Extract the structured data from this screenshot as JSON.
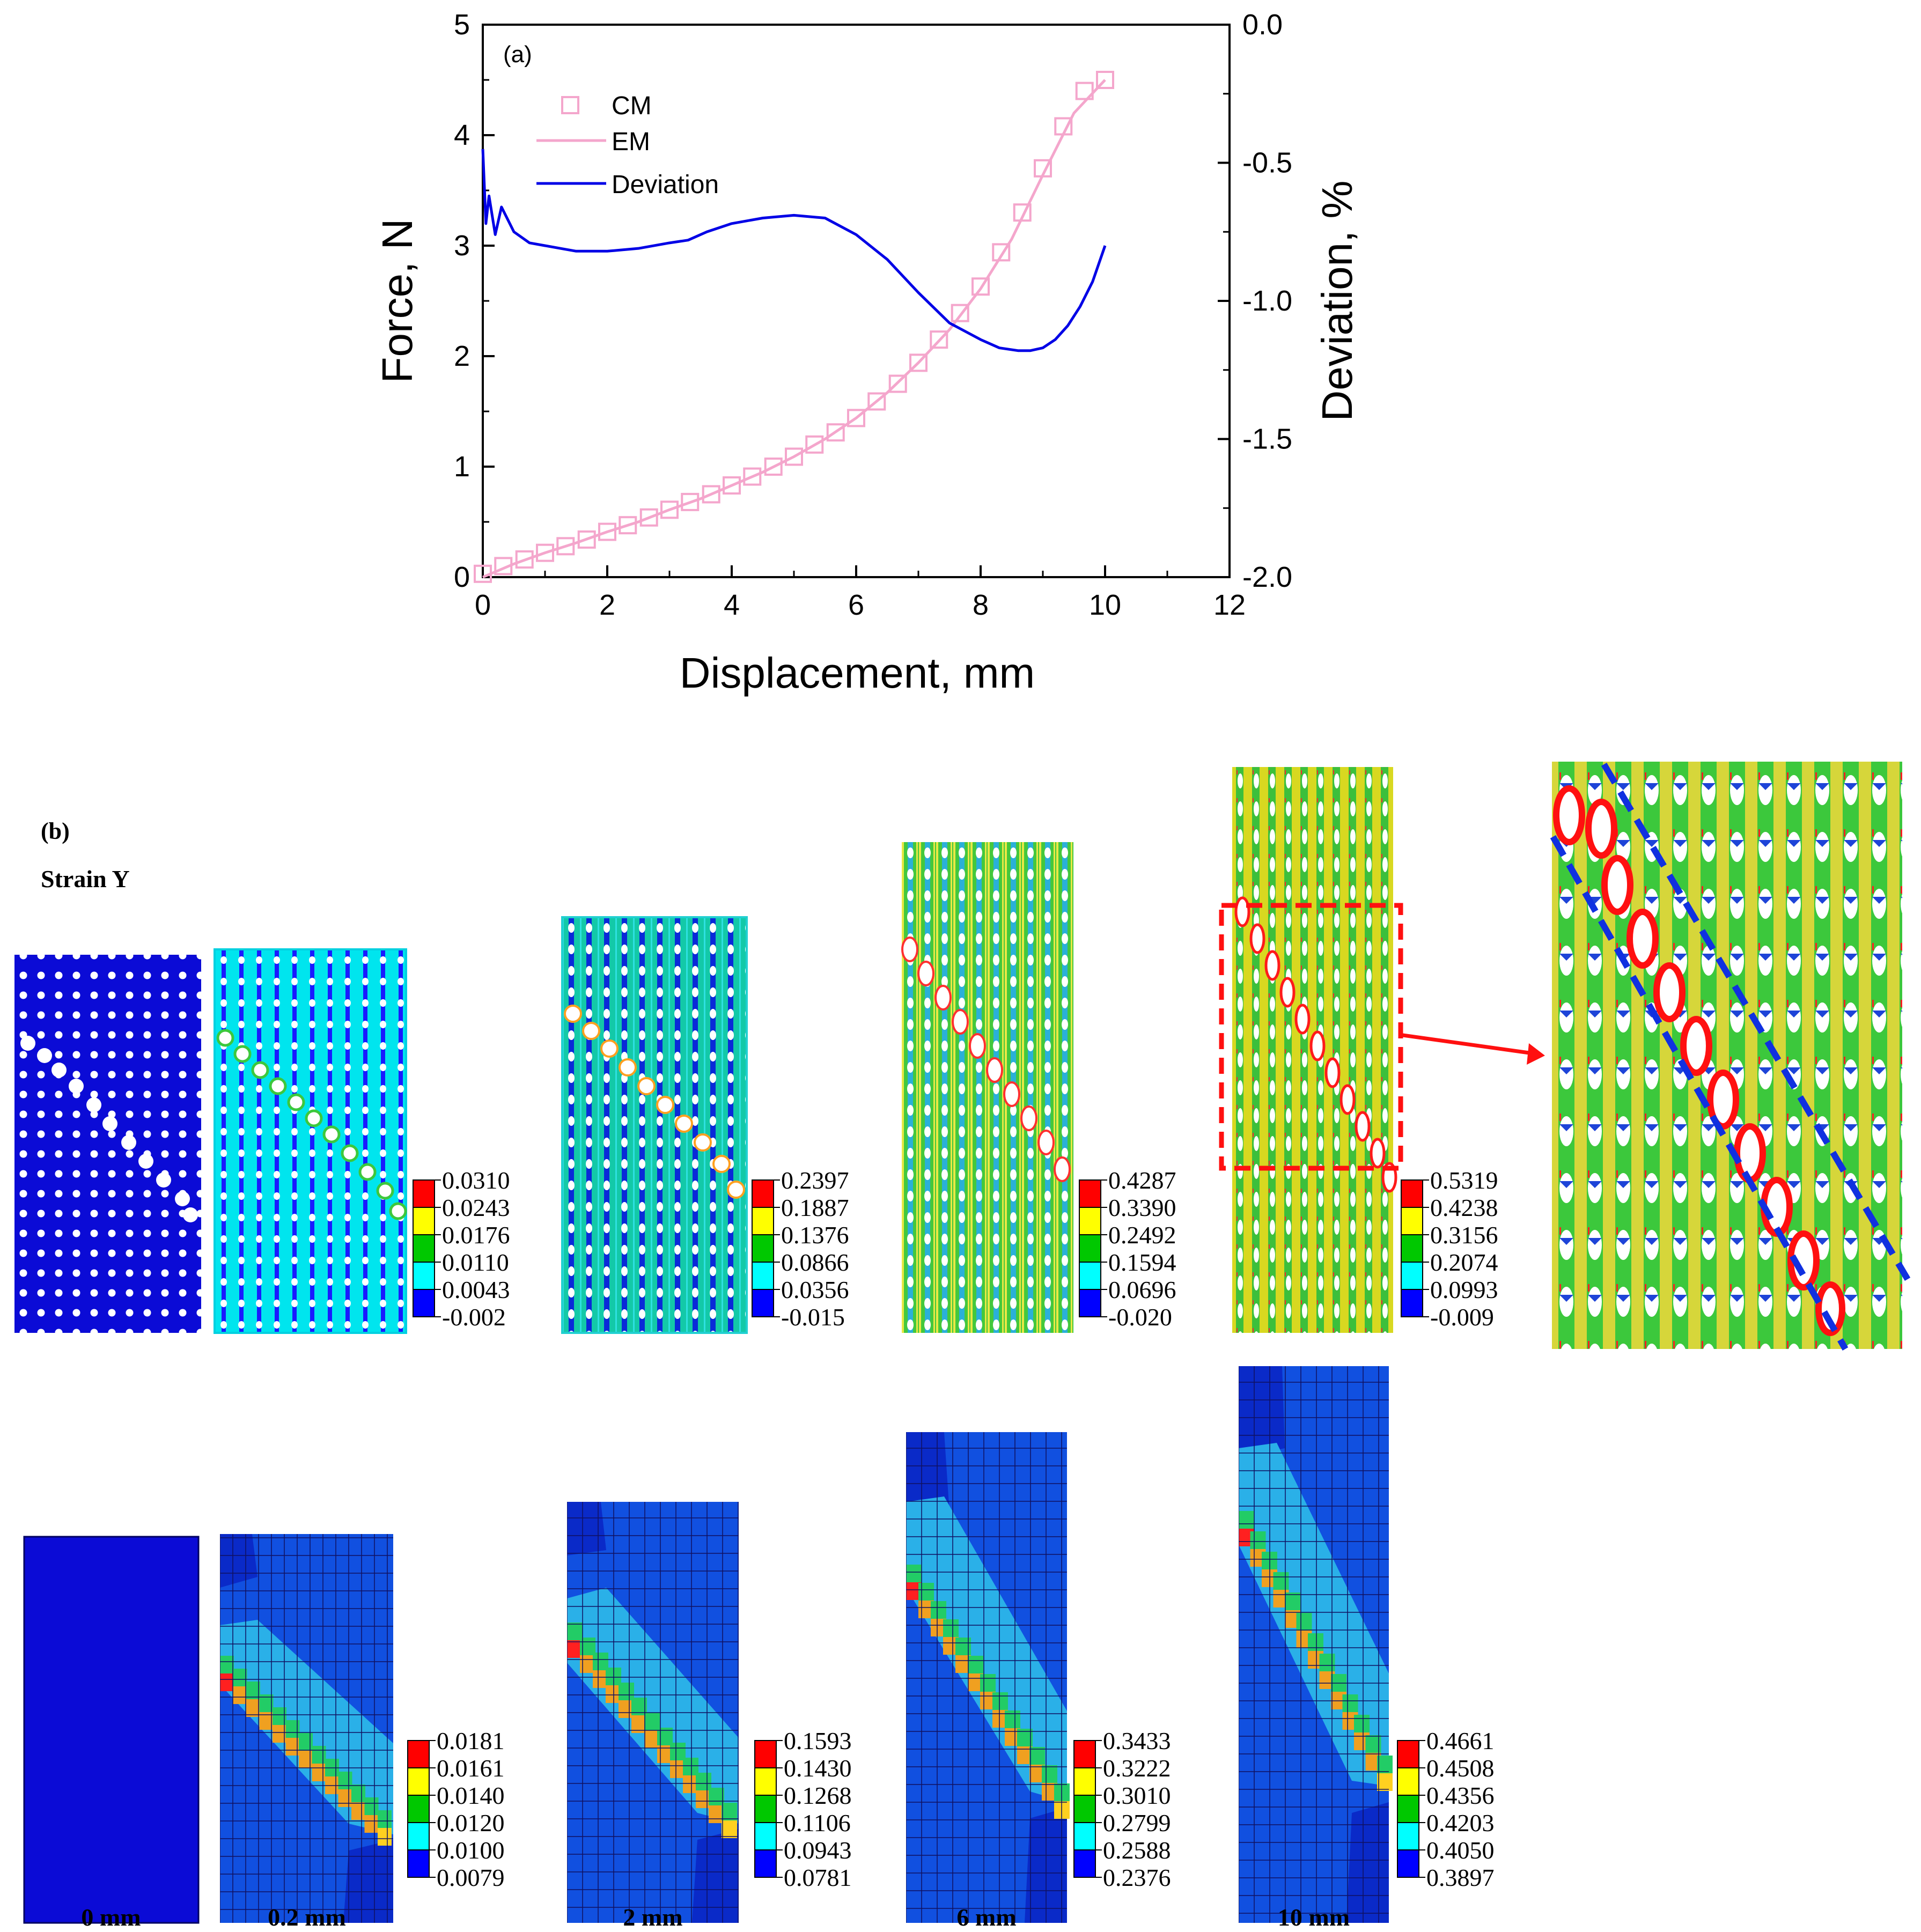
{
  "chart_data": [
    {
      "type": "line",
      "panel_label": "(a)",
      "xlabel": "Displacement, mm",
      "ylabel_left": "Force, N",
      "ylabel_right": "Deviation, %",
      "xlim": [
        0,
        12
      ],
      "ylim_left": [
        0,
        5
      ],
      "ylim_right": [
        -2.0,
        0.0
      ],
      "x_ticks": [
        "0",
        "2",
        "4",
        "6",
        "8",
        "10",
        "12"
      ],
      "y_left_ticks": [
        "0",
        "1",
        "2",
        "3",
        "4",
        "5"
      ],
      "y_right_ticks": [
        "-2.0",
        "-1.5",
        "-1.0",
        "-0.5",
        "0.0"
      ],
      "legend": [
        "CM",
        "EM",
        "Deviation"
      ],
      "legend_position": "top-left",
      "colors": {
        "force": "#f4a6cc",
        "deviation": "#0000e6"
      },
      "series": [
        {
          "name": "CM",
          "axis": "left",
          "marker": "square",
          "x": [
            0.0,
            0.33,
            0.67,
            1.0,
            1.33,
            1.67,
            2.0,
            2.33,
            2.67,
            3.0,
            3.33,
            3.67,
            4.0,
            4.33,
            4.67,
            5.0,
            5.33,
            5.67,
            6.0,
            6.33,
            6.67,
            7.0,
            7.33,
            7.67,
            8.0,
            8.33,
            8.67,
            9.0,
            9.33,
            9.67,
            10.0
          ],
          "y": [
            0.03,
            0.1,
            0.16,
            0.22,
            0.28,
            0.34,
            0.41,
            0.47,
            0.54,
            0.61,
            0.68,
            0.75,
            0.83,
            0.91,
            1.0,
            1.09,
            1.2,
            1.31,
            1.44,
            1.59,
            1.75,
            1.94,
            2.15,
            2.39,
            2.63,
            2.94,
            3.3,
            3.7,
            4.08,
            4.4,
            4.5
          ]
        },
        {
          "name": "EM",
          "axis": "left",
          "x": [
            0,
            0.5,
            1,
            1.5,
            2,
            2.5,
            3,
            3.5,
            4,
            4.5,
            5,
            5.5,
            6,
            6.5,
            7,
            7.5,
            8,
            8.5,
            9,
            9.5,
            10
          ],
          "y": [
            0.0,
            0.12,
            0.22,
            0.31,
            0.41,
            0.5,
            0.61,
            0.71,
            0.83,
            0.95,
            1.09,
            1.25,
            1.44,
            1.67,
            1.94,
            2.24,
            2.61,
            3.06,
            3.64,
            4.2,
            4.5
          ]
        },
        {
          "name": "Deviation",
          "axis": "right",
          "x": [
            0,
            0.05,
            0.1,
            0.2,
            0.3,
            0.5,
            0.75,
            1.0,
            1.25,
            1.5,
            1.75,
            2.0,
            2.5,
            3.0,
            3.3,
            3.6,
            4.0,
            4.5,
            5.0,
            5.5,
            6.0,
            6.5,
            7.0,
            7.5,
            8.0,
            8.3,
            8.6,
            8.8,
            9.0,
            9.2,
            9.4,
            9.6,
            9.8,
            10.0
          ],
          "y": [
            -0.45,
            -0.72,
            -0.62,
            -0.76,
            -0.66,
            -0.75,
            -0.79,
            -0.8,
            -0.81,
            -0.82,
            -0.82,
            -0.82,
            -0.81,
            -0.79,
            -0.78,
            -0.75,
            -0.72,
            -0.7,
            -0.69,
            -0.7,
            -0.76,
            -0.85,
            -0.97,
            -1.08,
            -1.14,
            -1.17,
            -1.18,
            -1.18,
            -1.17,
            -1.14,
            -1.09,
            -1.02,
            -0.93,
            -0.8
          ]
        }
      ]
    },
    {
      "type": "heatmap",
      "panel_label": "(b)",
      "title": "Strain Y",
      "displacements": [
        "0 mm",
        "0.2 mm",
        "2 mm",
        "6 mm",
        "10 mm"
      ],
      "band_colors": [
        "#ff0000",
        "#ffff00",
        "#00c800",
        "#00ffff",
        "#0000ff"
      ],
      "legends_top": [
        [
          "0.0310",
          "0.0243",
          "0.0176",
          "0.0110",
          "0.0043",
          "-0.002"
        ],
        [
          "0.2397",
          "0.1887",
          "0.1376",
          "0.0866",
          "0.0356",
          "-0.015"
        ],
        [
          "0.4287",
          "0.3390",
          "0.2492",
          "0.1594",
          "0.0696",
          "-0.020"
        ],
        [
          "0.5319",
          "0.4238",
          "0.3156",
          "0.2074",
          "0.0993",
          "-0.009"
        ]
      ],
      "legends_bottom": [
        [
          "0.0181",
          "0.0161",
          "0.0140",
          "0.0120",
          "0.0100",
          "0.0079"
        ],
        [
          "0.1593",
          "0.1430",
          "0.1268",
          "0.1106",
          "0.0943",
          "0.0781"
        ],
        [
          "0.3433",
          "0.3222",
          "0.3010",
          "0.2799",
          "0.2588",
          "0.2376"
        ],
        [
          "0.4661",
          "0.4508",
          "0.4356",
          "0.4203",
          "0.4050",
          "0.3897"
        ]
      ]
    }
  ]
}
